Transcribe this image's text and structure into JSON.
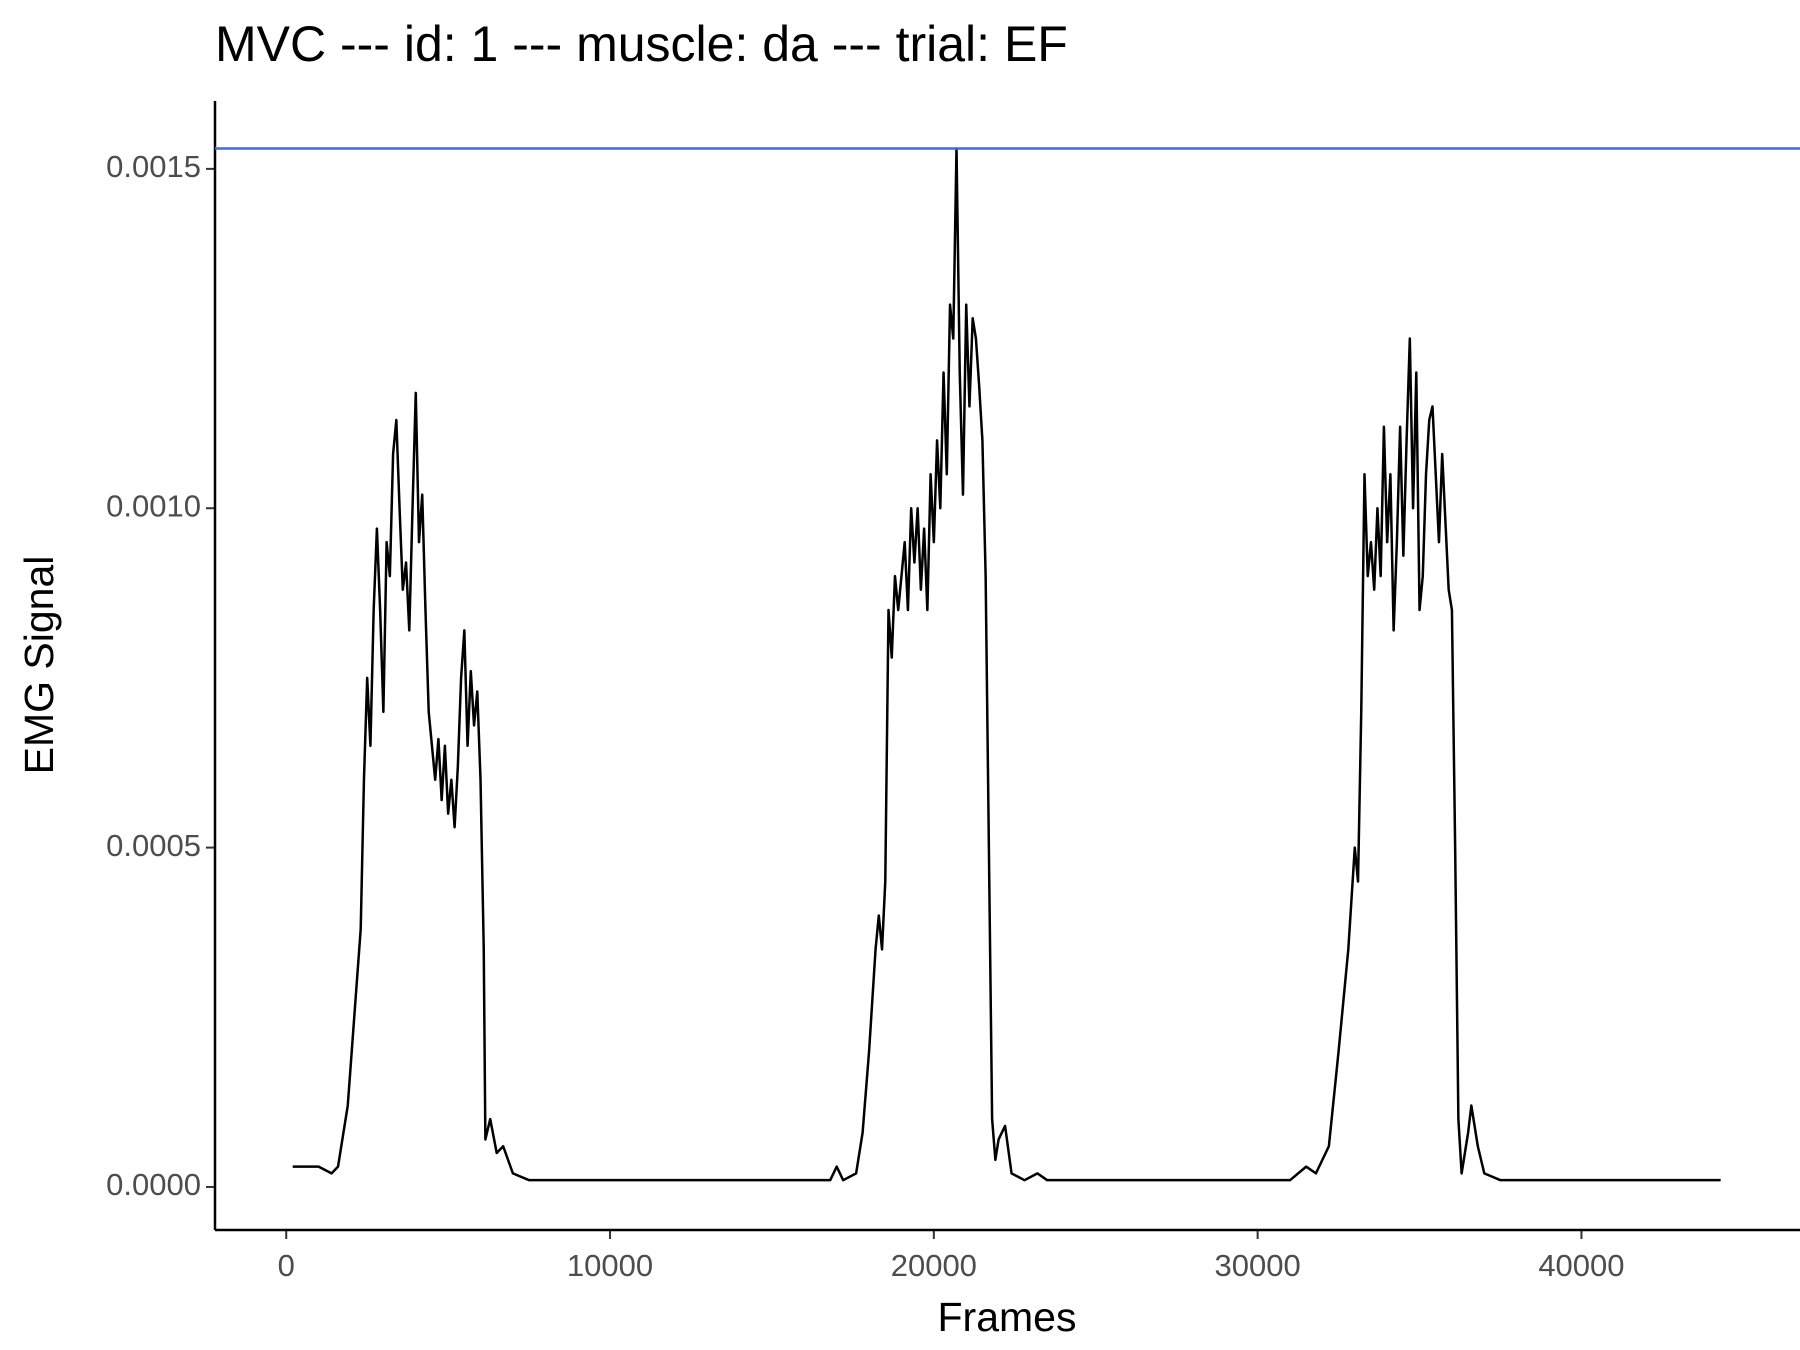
{
  "chart_data": {
    "type": "line",
    "title": "MVC --- id: 1 --- muscle: da --- trial: EF",
    "x_label": "Frames",
    "y_label": "EMG Signal",
    "xlim": [
      -2200,
      46750
    ],
    "ylim": [
      -6.34e-05,
      0.0016
    ],
    "xticks": [
      0,
      10000,
      20000,
      30000,
      40000
    ],
    "yticks": [
      {
        "value": 0,
        "label": "0.0000"
      },
      0.0005,
      {
        "value": 0.001,
        "label": "0.0010"
      },
      {
        "value": 0.0015,
        "label": "0.0015"
      }
    ],
    "hline": {
      "value": 0.00153,
      "color": "#4169e1"
    },
    "x": [
      200,
      500,
      1000,
      1400,
      1600,
      1900,
      2100,
      2300,
      2400,
      2500,
      2600,
      2700,
      2800,
      2900,
      3000,
      3100,
      3200,
      3300,
      3400,
      3500,
      3600,
      3700,
      3800,
      3900,
      4000,
      4100,
      4200,
      4300,
      4400,
      4500,
      4600,
      4700,
      4800,
      4900,
      5000,
      5100,
      5200,
      5300,
      5400,
      5500,
      5600,
      5700,
      5800,
      5900,
      6000,
      6100,
      6150,
      6300,
      6500,
      6700,
      7000,
      7500,
      16800,
      17000,
      17200,
      17600,
      17800,
      18000,
      18200,
      18300,
      18400,
      18500,
      18600,
      18700,
      18800,
      18900,
      19000,
      19100,
      19200,
      19300,
      19400,
      19500,
      19600,
      19700,
      19800,
      19900,
      20000,
      20100,
      20200,
      20300,
      20400,
      20500,
      20600,
      20700,
      20800,
      20900,
      21000,
      21100,
      21200,
      21300,
      21400,
      21500,
      21600,
      21700,
      21800,
      21900,
      22000,
      22200,
      22400,
      22800,
      23200,
      23500,
      31000,
      31500,
      31800,
      32200,
      32500,
      32800,
      33000,
      33100,
      33200,
      33300,
      33400,
      33500,
      33600,
      33700,
      33800,
      33900,
      34000,
      34100,
      34200,
      34300,
      34400,
      34500,
      34600,
      34700,
      34800,
      34900,
      35000,
      35100,
      35200,
      35300,
      35400,
      35500,
      35600,
      35700,
      35800,
      35900,
      36000,
      36100,
      36200,
      36300,
      36500,
      36600,
      36800,
      37000,
      37500,
      44300
    ],
    "series": [
      {
        "color": "#000000",
        "values": [
          3e-05,
          3e-05,
          3e-05,
          2e-05,
          3e-05,
          0.00012,
          0.00025,
          0.00038,
          0.0006,
          0.00075,
          0.00065,
          0.00085,
          0.00097,
          0.00085,
          0.0007,
          0.00095,
          0.0009,
          0.00108,
          0.00113,
          0.001,
          0.00088,
          0.00092,
          0.00082,
          0.001,
          0.00117,
          0.00095,
          0.00102,
          0.00085,
          0.0007,
          0.00065,
          0.0006,
          0.00066,
          0.00057,
          0.00065,
          0.00055,
          0.0006,
          0.00053,
          0.00062,
          0.00075,
          0.00082,
          0.00065,
          0.00076,
          0.00068,
          0.00073,
          0.0006,
          0.00035,
          7e-05,
          0.0001,
          5e-05,
          6e-05,
          2e-05,
          1e-05,
          1e-05,
          3e-05,
          1e-05,
          2e-05,
          8e-05,
          0.0002,
          0.00035,
          0.0004,
          0.00035,
          0.00045,
          0.00085,
          0.00078,
          0.0009,
          0.00085,
          0.0009,
          0.00095,
          0.00085,
          0.001,
          0.00092,
          0.001,
          0.00088,
          0.00097,
          0.00085,
          0.00105,
          0.00095,
          0.0011,
          0.001,
          0.0012,
          0.00105,
          0.0013,
          0.00125,
          0.00153,
          0.0012,
          0.00102,
          0.0013,
          0.00115,
          0.00128,
          0.00125,
          0.00118,
          0.0011,
          0.0009,
          0.0005,
          0.0001,
          4e-05,
          7e-05,
          9e-05,
          2e-05,
          1e-05,
          2e-05,
          1e-05,
          1e-05,
          3e-05,
          2e-05,
          6e-05,
          0.0002,
          0.00035,
          0.0005,
          0.00045,
          0.0007,
          0.00105,
          0.0009,
          0.00095,
          0.00088,
          0.001,
          0.0009,
          0.00112,
          0.00095,
          0.00105,
          0.00082,
          0.00095,
          0.00112,
          0.00093,
          0.0011,
          0.00125,
          0.001,
          0.0012,
          0.00085,
          0.0009,
          0.00105,
          0.00113,
          0.00115,
          0.00105,
          0.00095,
          0.00108,
          0.00098,
          0.00088,
          0.00085,
          0.0005,
          0.0001,
          2e-05,
          8e-05,
          0.00012,
          6e-05,
          2e-05,
          1e-05,
          1e-05
        ]
      }
    ]
  }
}
